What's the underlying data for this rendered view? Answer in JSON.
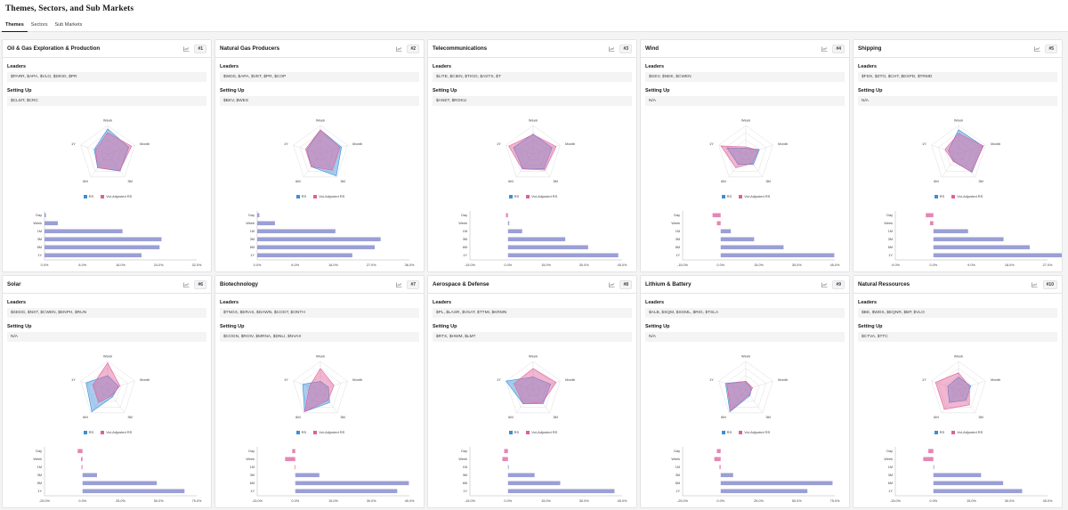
{
  "page": {
    "title": "Themes, Sectors, and Sub Markets"
  },
  "tabs": [
    {
      "label": "Themes",
      "active": true
    },
    {
      "label": "Sectors",
      "active": false
    },
    {
      "label": "Sub Markets",
      "active": false
    }
  ],
  "colors": {
    "rs": "#3b8fd9",
    "vol": "#e0609a",
    "bar_pos": "#9b9fd6",
    "bar_neg": "#e387b6",
    "grid": "#d4d4d8"
  },
  "labels": {
    "leaders": "Leaders",
    "setting_up": "Setting Up",
    "legend_rs": "RS",
    "legend_vol": "Vol-Adjusted RS"
  },
  "radar_axes": [
    "Week",
    "Month",
    "3M",
    "6M",
    "1Y"
  ],
  "bar_periods": [
    "Day",
    "Week",
    "1M",
    "3M",
    "6M",
    "1Y"
  ],
  "cards": [
    {
      "title": "Oil & Gas Exploration & Production",
      "rank": "#1",
      "leaders": "$PARR, $APA, $VLO, $DINO, $PR",
      "setting_up": "$CLMT, $CRC",
      "chart_data": {
        "type": "radar+bar",
        "radar": {
          "rs": [
            0.88,
            0.78,
            0.74,
            0.6,
            0.5
          ],
          "vol": [
            0.75,
            0.88,
            0.72,
            0.6,
            0.45
          ]
        },
        "bars": {
          "values": [
            0.3,
            2.8,
            16.4,
            24.6,
            24.2,
            20.4
          ],
          "ticks": [
            "0.0%",
            "8.0%",
            "16.0%",
            "24.0%",
            "32.0%"
          ],
          "xmin": 0,
          "xmax": 32
        }
      }
    },
    {
      "title": "Natural Gas Producers",
      "rank": "#2",
      "leaders": "$WDS, $APA, $VET, $PR, $COP",
      "setting_up": "$BKV, $WES",
      "chart_data": {
        "type": "radar+bar",
        "radar": {
          "rs": [
            0.85,
            0.78,
            0.95,
            0.55,
            0.5
          ],
          "vol": [
            0.85,
            0.72,
            0.7,
            0.55,
            0.55
          ]
        },
        "bars": {
          "values": [
            0.5,
            4.2,
            18.5,
            29.2,
            27.8,
            22.5
          ],
          "ticks": [
            "0.0%",
            "8.0%",
            "18.0%",
            "27.0%",
            "36.0%"
          ],
          "xmin": 0,
          "xmax": 36
        }
      }
    },
    {
      "title": "Telecommunications",
      "rank": "#3",
      "leaders": "$LITE, $CIEN, $TIGO, $ASTS, $T",
      "setting_up": "$ANET, $ROKU",
      "chart_data": {
        "type": "radar+bar",
        "radar": {
          "rs": [
            0.7,
            0.7,
            0.65,
            0.62,
            0.72
          ],
          "vol": [
            0.68,
            0.85,
            0.7,
            0.65,
            0.9
          ]
        },
        "bars": {
          "values": [
            -0.8,
            0.5,
            5.6,
            22.6,
            31.6,
            43.5
          ],
          "ticks": [
            "-15.0%",
            "0.0%",
            "15.0%",
            "30.0%",
            "45.0%"
          ],
          "xmin": -15,
          "xmax": 45
        }
      }
    },
    {
      "title": "Wind",
      "rank": "#4",
      "leaders": "$GEV, $NEE, $CWEN",
      "setting_up": "N/A",
      "chart_data": {
        "type": "radar+bar",
        "radar": {
          "rs": [
            0.2,
            0.5,
            0.45,
            0.45,
            0.7
          ],
          "vol": [
            0.25,
            0.45,
            0.4,
            0.6,
            0.92
          ]
        },
        "bars": {
          "values": [
            -3.2,
            -1.5,
            4.0,
            13.2,
            24.8,
            44.8
          ],
          "ticks": [
            "-15.0%",
            "0.0%",
            "15.0%",
            "30.0%",
            "45.0%"
          ],
          "xmin": -15,
          "xmax": 45
        }
      }
    },
    {
      "title": "Shipping",
      "rank": "#5",
      "leaders": "$FDX, $ZTO, $CHT, $EXPD, $TRMD",
      "setting_up": "N/A",
      "chart_data": {
        "type": "radar+bar",
        "radar": {
          "rs": [
            0.85,
            0.9,
            0.8,
            0.3,
            0.38
          ],
          "vol": [
            0.72,
            0.92,
            0.78,
            0.32,
            0.5
          ]
        },
        "bars": {
          "values": [
            -1.8,
            -0.8,
            8.2,
            16.6,
            22.8,
            37.5
          ],
          "ticks": [
            "-9.0%",
            "0.0%",
            "9.0%",
            "18.0%",
            "27.0%"
          ],
          "xmin": -9,
          "xmax": 27
        }
      }
    },
    {
      "title": "Solar",
      "rank": "#6",
      "leaders": "$SEDG, $NXT, $CWEN, $ENPH, $RUN",
      "setting_up": "N/A",
      "chart_data": {
        "type": "radar+bar",
        "radar": {
          "rs": [
            0.5,
            0.4,
            0.3,
            0.95,
            0.8
          ],
          "vol": [
            0.95,
            0.45,
            0.25,
            0.55,
            0.55
          ]
        },
        "bars": {
          "values": [
            -3.2,
            -1.0,
            -0.7,
            9.5,
            48.8,
            67.0
          ],
          "ticks": [
            "-25.0%",
            "0.0%",
            "25.0%",
            "50.0%",
            "75.0%"
          ],
          "xmin": -25,
          "xmax": 75
        }
      }
    },
    {
      "title": "Biotechnology",
      "rank": "#7",
      "leaders": "$TNGX, $ERAS, $DAWN, $COGT, $ONTH",
      "setting_up": "$COGN, $ROIV, $MRNA, $DNLI, $NVAX",
      "chart_data": {
        "type": "radar+bar",
        "radar": {
          "rs": [
            0.3,
            0.3,
            0.55,
            0.95,
            0.65
          ],
          "vol": [
            0.75,
            0.5,
            0.45,
            0.95,
            0.4
          ]
        },
        "bars": {
          "values": [
            -1.2,
            -4.0,
            -0.3,
            9.5,
            44.8,
            40.2
          ],
          "ticks": [
            "-15.0%",
            "0.0%",
            "15.0%",
            "30.0%",
            "45.0%"
          ],
          "xmin": -15,
          "xmax": 45
        }
      }
    },
    {
      "title": "Aerospace & Defense",
      "rank": "#8",
      "leaders": "$PL, $LASR, $VSAT, $TTMI, $KRMN",
      "setting_up": "$RTX, $HWM, $LMT",
      "chart_data": {
        "type": "radar+bar",
        "radar": {
          "rs": [
            0.45,
            0.65,
            0.6,
            0.6,
            1.0
          ],
          "vol": [
            0.75,
            0.85,
            0.55,
            0.6,
            0.7
          ]
        },
        "bars": {
          "values": [
            -1.5,
            -2.2,
            0.3,
            10.5,
            20.6,
            42.0
          ],
          "ticks": [
            "-15.0%",
            "0.0%",
            "15.0%",
            "30.0%",
            "45.0%"
          ],
          "xmin": -15,
          "xmax": 45
        }
      }
    },
    {
      "title": "Lithium & Battery",
      "rank": "#9",
      "leaders": "$ALB, $SQM, $SGML, $RIG, $TSLA",
      "setting_up": "N/A",
      "chart_data": {
        "type": "radar+bar",
        "radar": {
          "rs": [
            0.3,
            0.2,
            0.25,
            0.95,
            0.75
          ],
          "vol": [
            0.3,
            0.25,
            0.2,
            0.9,
            0.7
          ]
        },
        "bars": {
          "values": [
            -2.5,
            -4.2,
            -0.8,
            8.2,
            73.5,
            57.0
          ],
          "ticks": [
            "-25.0%",
            "0.0%",
            "25.0%",
            "50.0%",
            "75.0%"
          ],
          "xmin": -25,
          "xmax": 75
        }
      }
    },
    {
      "title": "Natural Ressources",
      "rank": "#10",
      "leaders": "$BE, $WDS, $EQNR, $BP, $VLO",
      "setting_up": "$CTVA, $TTC",
      "chart_data": {
        "type": "radar+bar",
        "radar": {
          "rs": [
            0.45,
            0.45,
            0.45,
            0.55,
            0.4
          ],
          "vol": [
            0.6,
            0.4,
            0.65,
            0.85,
            0.85
          ]
        },
        "bars": {
          "values": [
            -2.0,
            -4.0,
            0.3,
            18.8,
            27.5,
            35.0
          ],
          "ticks": [
            "-15.0%",
            "0.0%",
            "15.0%",
            "30.0%",
            "45.0%"
          ],
          "xmin": -15,
          "xmax": 45
        }
      }
    }
  ]
}
